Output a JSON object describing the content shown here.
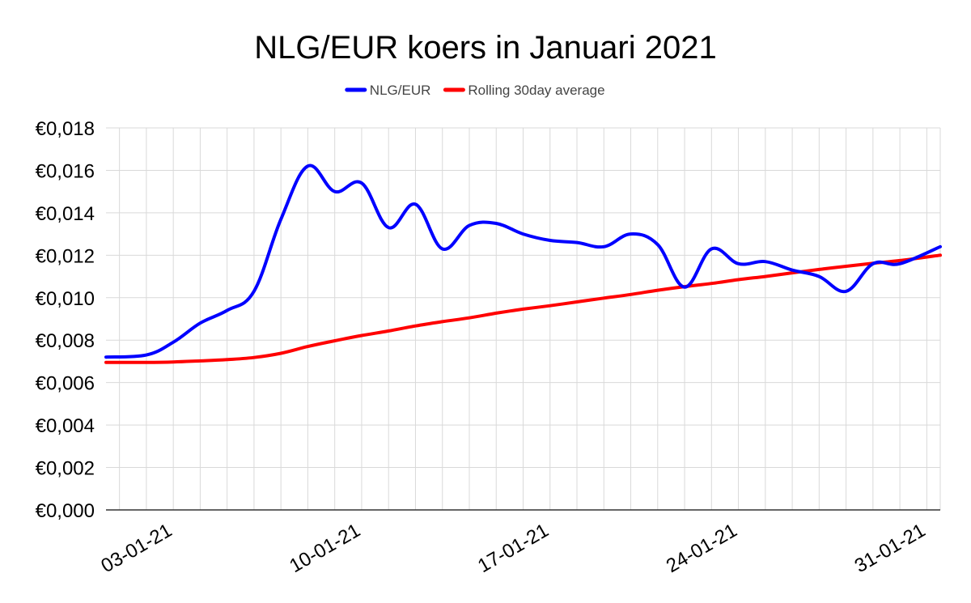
{
  "chart_data": {
    "type": "line",
    "title": "NLG/EUR koers in Januari 2021",
    "xlabel": "",
    "ylabel": "",
    "x": [
      "01-01-21",
      "02-01-21",
      "03-01-21",
      "04-01-21",
      "05-01-21",
      "06-01-21",
      "07-01-21",
      "08-01-21",
      "09-01-21",
      "10-01-21",
      "11-01-21",
      "12-01-21",
      "13-01-21",
      "14-01-21",
      "15-01-21",
      "16-01-21",
      "17-01-21",
      "18-01-21",
      "19-01-21",
      "20-01-21",
      "21-01-21",
      "22-01-21",
      "23-01-21",
      "24-01-21",
      "25-01-21",
      "26-01-21",
      "27-01-21",
      "28-01-21",
      "29-01-21",
      "30-01-21",
      "31-01-21"
    ],
    "x_tick_labels": [
      "03-01-21",
      "10-01-21",
      "17-01-21",
      "24-01-21",
      "31-01-21"
    ],
    "y_tick_labels": [
      "€0,000",
      "€0,002",
      "€0,004",
      "€0,006",
      "€0,008",
      "€0,010",
      "€0,012",
      "€0,014",
      "€0,016",
      "€0,018"
    ],
    "ylim": [
      0,
      0.018
    ],
    "y_tick_step": 0.002,
    "grid": true,
    "legend_position": "top-center",
    "series": [
      {
        "name": "NLG/EUR",
        "color": "#0000ff",
        "values": [
          0.0072,
          0.0073,
          0.0079,
          0.0088,
          0.0094,
          0.0103,
          0.0137,
          0.0162,
          0.015,
          0.0154,
          0.0133,
          0.0144,
          0.0123,
          0.0134,
          0.0135,
          0.013,
          0.0127,
          0.0126,
          0.0124,
          0.013,
          0.0125,
          0.0105,
          0.0123,
          0.0116,
          0.0117,
          0.0113,
          0.011,
          0.0103,
          0.0116,
          0.0116,
          0.0124
        ]
      },
      {
        "name": "Rolling 30day average",
        "color": "#ff0000",
        "values": [
          0.00695,
          0.00695,
          0.00697,
          0.00702,
          0.00708,
          0.00718,
          0.00738,
          0.0077,
          0.00797,
          0.00822,
          0.00843,
          0.00867,
          0.00887,
          0.00905,
          0.00927,
          0.00946,
          0.00962,
          0.0098,
          0.00998,
          0.01015,
          0.01035,
          0.01052,
          0.01067,
          0.01085,
          0.011,
          0.01117,
          0.01133,
          0.01148,
          0.01162,
          0.01175,
          0.012
        ]
      }
    ]
  }
}
